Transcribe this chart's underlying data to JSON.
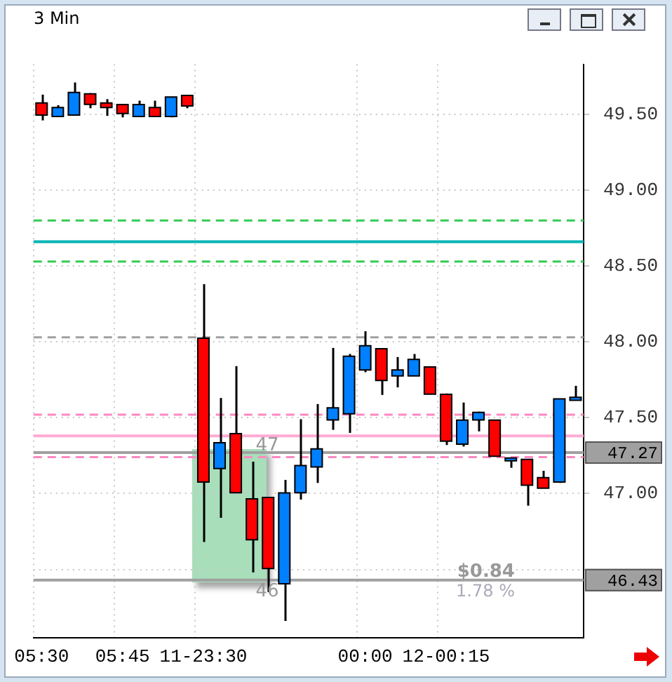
{
  "chart_data": {
    "type": "candlestick",
    "title": "3 Min",
    "categories": [
      "05:30",
      null,
      null,
      null,
      null,
      "05:45",
      null,
      null,
      null,
      null,
      "11-23:30",
      null,
      null,
      null,
      null,
      null,
      null,
      null,
      null,
      null,
      "00:00",
      null,
      null,
      null,
      null,
      "12-00:15",
      null,
      null,
      null,
      null,
      null,
      null,
      null,
      null
    ],
    "ohlc": [
      [
        49.57,
        49.63,
        49.46,
        49.5
      ],
      [
        49.49,
        49.56,
        49.49,
        49.54
      ],
      [
        49.5,
        49.71,
        49.5,
        49.64
      ],
      [
        49.63,
        49.64,
        49.54,
        49.57
      ],
      [
        49.57,
        49.6,
        49.49,
        49.55
      ],
      [
        49.56,
        49.56,
        49.48,
        49.51
      ],
      [
        49.49,
        49.59,
        49.49,
        49.56
      ],
      [
        49.54,
        49.59,
        49.49,
        49.49
      ],
      [
        49.49,
        49.61,
        49.48,
        49.61
      ],
      [
        49.62,
        49.62,
        49.54,
        49.56
      ],
      [
        48.02,
        48.38,
        46.68,
        47.08
      ],
      [
        47.17,
        47.63,
        46.84,
        47.33
      ],
      [
        47.39,
        47.84,
        47.01,
        47.01
      ],
      [
        46.96,
        47.21,
        46.48,
        46.7
      ],
      [
        46.97,
        46.97,
        46.35,
        46.51
      ],
      [
        46.41,
        47.09,
        46.16,
        47.0
      ],
      [
        47.01,
        47.49,
        46.96,
        47.18
      ],
      [
        47.18,
        47.59,
        47.07,
        47.29
      ],
      [
        47.49,
        47.96,
        47.42,
        47.56
      ],
      [
        47.53,
        47.92,
        47.4,
        47.9
      ],
      [
        47.82,
        48.07,
        47.8,
        47.97
      ],
      [
        47.95,
        47.95,
        47.65,
        47.75
      ],
      [
        47.78,
        47.9,
        47.7,
        47.81
      ],
      [
        47.78,
        47.92,
        47.78,
        47.88
      ],
      [
        47.83,
        47.83,
        47.66,
        47.66
      ],
      [
        47.65,
        47.66,
        47.32,
        47.35
      ],
      [
        47.33,
        47.6,
        47.31,
        47.48
      ],
      [
        47.49,
        47.54,
        47.41,
        47.53
      ],
      [
        47.48,
        47.48,
        47.25,
        47.25
      ],
      [
        47.22,
        47.23,
        47.17,
        47.23
      ],
      [
        47.22,
        47.22,
        46.92,
        47.06
      ],
      [
        47.1,
        47.15,
        47.04,
        47.04
      ],
      [
        47.08,
        47.62,
        47.07,
        47.62
      ],
      [
        47.62,
        47.71,
        47.62,
        47.63
      ]
    ],
    "colors": [
      "#ff0000",
      "#0080ff",
      "#0080ff",
      "#ff0000",
      "#ff0000",
      "#ff0000",
      "#0080ff",
      "#ff0000",
      "#0080ff",
      "#ff0000",
      "#ff0000",
      "#0080ff",
      "#ff0000",
      "#ff0000",
      "#ff0000",
      "#0080ff",
      "#0080ff",
      "#0080ff",
      "#0080ff",
      "#0080ff",
      "#0080ff",
      "#ff0000",
      "#0080ff",
      "#0080ff",
      "#ff0000",
      "#ff0000",
      "#0080ff",
      "#0080ff",
      "#ff0000",
      "#0080ff",
      "#ff0000",
      "#ff0000",
      "#0080ff",
      "#0080ff"
    ],
    "ylim": [
      46.05,
      49.83
    ],
    "yticks": [
      {
        "value": 46.5,
        "label": null
      },
      {
        "value": 47,
        "label": "47.00"
      },
      {
        "value": 47.5,
        "label": "47.50"
      },
      {
        "value": 48,
        "label": "48.00"
      },
      {
        "value": 48.5,
        "label": "48.50"
      },
      {
        "value": 49,
        "label": "49.00"
      },
      {
        "value": 49.5,
        "label": "49.50"
      }
    ],
    "grid": true,
    "ref_lines": [
      {
        "axis": "y",
        "value": 48.8,
        "color": "#33cc55",
        "line_style": "dashed"
      },
      {
        "axis": "y",
        "value": 48.66,
        "color": "#00b4b4",
        "line_style": "solid"
      },
      {
        "axis": "y",
        "value": 48.53,
        "color": "#33cc55",
        "line_style": "dashed"
      },
      {
        "axis": "y",
        "value": 48.03,
        "color": "#a0a0a0",
        "line_style": "dashed"
      },
      {
        "axis": "y",
        "value": 47.52,
        "color": "#ff88c0",
        "line_style": "dashed"
      },
      {
        "axis": "y",
        "value": 47.38,
        "color": "#ffaad4",
        "line_style": "solid"
      },
      {
        "axis": "y",
        "value": 47.24,
        "color": "#ff88c0",
        "line_style": "dashed"
      },
      {
        "axis": "y",
        "value": 47.27,
        "color": "#a0a0a0",
        "line_style": "solid",
        "label": "47.27"
      },
      {
        "axis": "y",
        "value": 46.43,
        "color": "#a0a0a0",
        "line_style": "solid",
        "label": "46.43"
      }
    ],
    "annotations": [
      "47",
      "46",
      "$0.84",
      "1.78 %"
    ]
  }
}
